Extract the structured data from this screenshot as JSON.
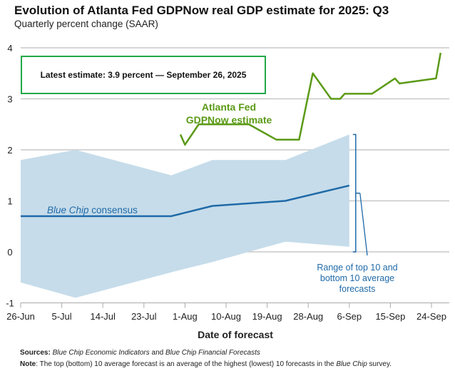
{
  "chart_data": {
    "type": "line",
    "title": "Evolution of Atlanta Fed GDPNow real GDP estimate for 2025: Q3",
    "subtitle": "Quarterly percent change (SAAR)",
    "xlabel": "Date of forecast",
    "ylabel": "",
    "ylim": [
      -1,
      4
    ],
    "yticks": [
      "4",
      "3",
      "2",
      "1",
      "0",
      "-1"
    ],
    "ytick_values": [
      4,
      3,
      2,
      1,
      0,
      -1
    ],
    "xticks": [
      "26-Jun",
      "5-Jul",
      "14-Jul",
      "23-Jul",
      "1-Aug",
      "10-Aug",
      "19-Aug",
      "28-Aug",
      "6-Sep",
      "15-Sep",
      "24-Sep"
    ],
    "xtick_dates": [
      "2025-06-26",
      "2025-07-05",
      "2025-07-14",
      "2025-07-23",
      "2025-08-01",
      "2025-08-10",
      "2025-08-19",
      "2025-08-28",
      "2025-09-06",
      "2025-09-15",
      "2025-09-24"
    ],
    "grid": true,
    "series": [
      {
        "name": "Atlanta Fed GDPNow estimate",
        "label_lines": [
          "Atlanta Fed",
          "GDPNow estimate"
        ],
        "color": "#5b9a16",
        "x": [
          "2025-07-31",
          "2025-08-01",
          "2025-08-04",
          "2025-08-15",
          "2025-08-21",
          "2025-08-26",
          "2025-08-29",
          "2025-09-02",
          "2025-09-04",
          "2025-09-05",
          "2025-09-11",
          "2025-09-16",
          "2025-09-17",
          "2025-09-25",
          "2025-09-26"
        ],
        "values": [
          2.3,
          2.1,
          2.5,
          2.5,
          2.2,
          2.2,
          3.5,
          3.0,
          3.0,
          3.1,
          3.1,
          3.4,
          3.3,
          3.4,
          3.9
        ]
      },
      {
        "name": "Blue Chip consensus",
        "label_italic": "Blue Chip",
        "label_rest": " consensus",
        "color": "#1f6aa8",
        "x": [
          "2025-06-26",
          "2025-07-29",
          "2025-08-07",
          "2025-08-23",
          "2025-09-06"
        ],
        "values": [
          0.7,
          0.7,
          0.9,
          1.0,
          1.3
        ]
      },
      {
        "name": "Range of top 10 and bottom 10 average forecasts",
        "label_lines": [
          "Range of top 10 and",
          "bottom 10 average",
          "forecasts"
        ],
        "type": "area",
        "color": "#c6dcea",
        "x": [
          "2025-06-26",
          "2025-07-08",
          "2025-07-29",
          "2025-08-07",
          "2025-08-23",
          "2025-09-06"
        ],
        "upper": [
          1.8,
          2.0,
          1.5,
          1.8,
          1.8,
          2.3
        ],
        "lower": [
          -0.6,
          -0.9,
          -0.4,
          -0.2,
          0.2,
          0.1
        ]
      }
    ],
    "annotation": "Latest estimate: 3.9 percent — September 26, 2025"
  },
  "footer": {
    "sources_label": "Sources:",
    "sources_italic1": "Blue Chip Economic Indicators",
    "sources_and": " and ",
    "sources_italic2": "Blue Chip Financial Forecasts",
    "note_label": "Note",
    "note_text": ": The top (bottom) 10 average forecast is an average of the highest (lowest) 10 forecasts in the ",
    "note_italic": "Blue Chip",
    "note_end": " survey."
  }
}
